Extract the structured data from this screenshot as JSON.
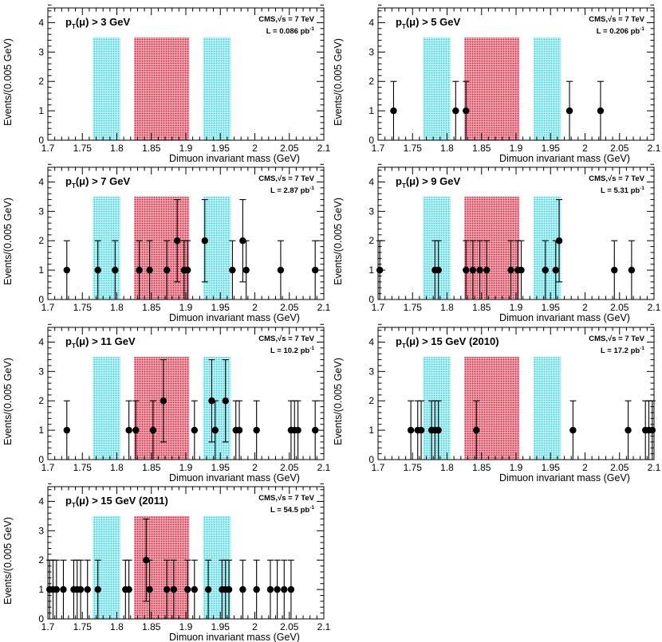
{
  "figure": {
    "x_axis_label": "Dimuon invariant mass (GeV)",
    "y_axis_label": "Events/(0.005 GeV)",
    "experiment": "CMS,",
    "sqrt_s": "√s = 7 TeV"
  },
  "colors": {
    "sideband": "#7fe3ea",
    "signal": "#e0667a",
    "marker": "#000000",
    "frame": "#000000"
  },
  "chart_data": [
    {
      "type": "scatter",
      "title_main": "p",
      "title_sub": "T",
      "title_rest": "(μ) > 3 GeV",
      "lumi": "L = 0.086 pb",
      "lumi_unit_sup": "-1",
      "xlim": [
        1.7,
        2.1
      ],
      "ylim": [
        0,
        4.5
      ],
      "x_ticks": [
        "1.7",
        "1.75",
        "1.8",
        "1.85",
        "1.9",
        "1.95",
        "2",
        "2.05",
        "2.1"
      ],
      "y_ticks": [
        "0",
        "1",
        "2",
        "3",
        "4"
      ],
      "sidebands": [
        [
          1.765,
          1.805
        ],
        [
          1.925,
          1.965
        ]
      ],
      "signal_region": [
        1.825,
        1.905
      ],
      "band_height": 3.5,
      "points": []
    },
    {
      "type": "scatter",
      "title_main": "p",
      "title_sub": "T",
      "title_rest": "(μ) > 5 GeV",
      "lumi": "L = 0.206 pb",
      "lumi_unit_sup": "-1",
      "xlim": [
        1.7,
        2.1
      ],
      "ylim": [
        0,
        4.5
      ],
      "x_ticks": [
        "1.7",
        "1.75",
        "1.8",
        "1.85",
        "1.9",
        "1.95",
        "2",
        "2.05",
        "2.1"
      ],
      "y_ticks": [
        "0",
        "1",
        "2",
        "3",
        "4"
      ],
      "sidebands": [
        [
          1.765,
          1.805
        ],
        [
          1.925,
          1.965
        ]
      ],
      "signal_region": [
        1.825,
        1.905
      ],
      "band_height": 3.5,
      "points": [
        [
          1.7225,
          1
        ],
        [
          1.8125,
          1
        ],
        [
          1.8275,
          1
        ],
        [
          1.9775,
          1
        ],
        [
          2.0225,
          1
        ]
      ]
    },
    {
      "type": "scatter",
      "title_main": "p",
      "title_sub": "T",
      "title_rest": "(μ) > 7 GeV",
      "lumi": "L = 2.87 pb",
      "lumi_unit_sup": "-1",
      "xlim": [
        1.7,
        2.1
      ],
      "ylim": [
        0,
        4.5
      ],
      "x_ticks": [
        "1.7",
        "1.75",
        "1.8",
        "1.85",
        "1.9",
        "1.95",
        "2",
        "2.05",
        "2.1"
      ],
      "y_ticks": [
        "0",
        "1",
        "2",
        "3",
        "4"
      ],
      "sidebands": [
        [
          1.765,
          1.805
        ],
        [
          1.925,
          1.965
        ]
      ],
      "signal_region": [
        1.825,
        1.905
      ],
      "band_height": 3.5,
      "points": [
        [
          1.7275,
          1
        ],
        [
          1.7725,
          1
        ],
        [
          1.7975,
          1
        ],
        [
          1.8325,
          1
        ],
        [
          1.8475,
          1
        ],
        [
          1.8725,
          1
        ],
        [
          1.8875,
          2
        ],
        [
          1.8975,
          1
        ],
        [
          1.9025,
          1
        ],
        [
          1.9275,
          2
        ],
        [
          1.9675,
          1
        ],
        [
          1.9825,
          2
        ],
        [
          1.9875,
          1
        ],
        [
          2.0375,
          1
        ],
        [
          2.0875,
          1
        ]
      ]
    },
    {
      "type": "scatter",
      "title_main": "p",
      "title_sub": "T",
      "title_rest": "(μ) > 9 GeV",
      "lumi": "L = 5.31 pb",
      "lumi_unit_sup": "-1",
      "xlim": [
        1.7,
        2.1
      ],
      "ylim": [
        0,
        4.5
      ],
      "x_ticks": [
        "1.7",
        "1.75",
        "1.8",
        "1.85",
        "1.9",
        "1.95",
        "2",
        "2.05",
        "2.1"
      ],
      "y_ticks": [
        "0",
        "1",
        "2",
        "3",
        "4"
      ],
      "sidebands": [
        [
          1.765,
          1.805
        ],
        [
          1.925,
          1.965
        ]
      ],
      "signal_region": [
        1.825,
        1.905
      ],
      "band_height": 3.5,
      "points": [
        [
          1.7025,
          1
        ],
        [
          1.7825,
          1
        ],
        [
          1.7875,
          1
        ],
        [
          1.8275,
          1
        ],
        [
          1.8375,
          1
        ],
        [
          1.8475,
          1
        ],
        [
          1.8575,
          1
        ],
        [
          1.8925,
          1
        ],
        [
          1.9025,
          1
        ],
        [
          1.9075,
          1
        ],
        [
          1.9425,
          1
        ],
        [
          1.9575,
          1
        ],
        [
          1.9625,
          2
        ],
        [
          2.0425,
          1
        ],
        [
          2.0675,
          1
        ]
      ]
    },
    {
      "type": "scatter",
      "title_main": "p",
      "title_sub": "T",
      "title_rest": "(μ) > 11 GeV",
      "lumi": "L = 10.2 pb",
      "lumi_unit_sup": "-1",
      "xlim": [
        1.7,
        2.1
      ],
      "ylim": [
        0,
        4.5
      ],
      "x_ticks": [
        "1.7",
        "1.75",
        "1.8",
        "1.85",
        "1.9",
        "1.95",
        "2",
        "2.05",
        "2.1"
      ],
      "y_ticks": [
        "0",
        "1",
        "2",
        "3",
        "4"
      ],
      "sidebands": [
        [
          1.765,
          1.805
        ],
        [
          1.925,
          1.965
        ]
      ],
      "signal_region": [
        1.825,
        1.905
      ],
      "band_height": 3.5,
      "points": [
        [
          1.7275,
          1
        ],
        [
          1.8175,
          1
        ],
        [
          1.8275,
          1
        ],
        [
          1.8525,
          1
        ],
        [
          1.8675,
          2
        ],
        [
          1.9125,
          1
        ],
        [
          1.9375,
          2
        ],
        [
          1.9425,
          1
        ],
        [
          1.9575,
          2
        ],
        [
          1.9725,
          1
        ],
        [
          1.9775,
          1
        ],
        [
          2.0025,
          1
        ],
        [
          2.0525,
          1
        ],
        [
          2.0575,
          1
        ],
        [
          2.0625,
          1
        ],
        [
          2.0875,
          1
        ]
      ]
    },
    {
      "type": "scatter",
      "title_main": "p",
      "title_sub": "T",
      "title_rest": "(μ) > 15 GeV (2010)",
      "lumi": "L = 17.2 pb",
      "lumi_unit_sup": "-1",
      "xlim": [
        1.7,
        2.1
      ],
      "ylim": [
        0,
        4.5
      ],
      "x_ticks": [
        "1.7",
        "1.75",
        "1.8",
        "1.85",
        "1.9",
        "1.95",
        "2",
        "2.05",
        "2.1"
      ],
      "y_ticks": [
        "0",
        "1",
        "2",
        "3",
        "4"
      ],
      "sidebands": [
        [
          1.765,
          1.805
        ],
        [
          1.925,
          1.965
        ]
      ],
      "signal_region": [
        1.825,
        1.905
      ],
      "band_height": 3.5,
      "points": [
        [
          1.7475,
          1
        ],
        [
          1.7575,
          1
        ],
        [
          1.7625,
          1
        ],
        [
          1.7775,
          1
        ],
        [
          1.7825,
          1
        ],
        [
          1.7875,
          1
        ],
        [
          1.8425,
          1
        ],
        [
          1.9825,
          1
        ],
        [
          2.0625,
          1
        ],
        [
          2.0875,
          1
        ],
        [
          2.0925,
          1
        ],
        [
          2.0975,
          1
        ]
      ]
    },
    {
      "type": "scatter",
      "title_main": "p",
      "title_sub": "T",
      "title_rest": "(μ) > 15 GeV (2011)",
      "lumi": "L = 54.5 pb",
      "lumi_unit_sup": "-1",
      "xlim": [
        1.7,
        2.1
      ],
      "ylim": [
        0,
        4.5
      ],
      "x_ticks": [
        "1.7",
        "1.75",
        "1.8",
        "1.85",
        "1.9",
        "1.95",
        "2",
        "2.05",
        "2.1"
      ],
      "y_ticks": [
        "0",
        "1",
        "2",
        "3",
        "4"
      ],
      "sidebands": [
        [
          1.765,
          1.805
        ],
        [
          1.925,
          1.965
        ]
      ],
      "signal_region": [
        1.825,
        1.905
      ],
      "band_height": 3.5,
      "points": [
        [
          1.7025,
          1
        ],
        [
          1.7075,
          1
        ],
        [
          1.7125,
          1
        ],
        [
          1.7225,
          1
        ],
        [
          1.7375,
          1
        ],
        [
          1.7425,
          1
        ],
        [
          1.7475,
          1
        ],
        [
          1.7575,
          1
        ],
        [
          1.7725,
          1
        ],
        [
          1.8125,
          1
        ],
        [
          1.8175,
          1
        ],
        [
          1.8425,
          2
        ],
        [
          1.8475,
          1
        ],
        [
          1.8725,
          1
        ],
        [
          1.8825,
          1
        ],
        [
          1.9025,
          1
        ],
        [
          1.9125,
          1
        ],
        [
          1.9325,
          1
        ],
        [
          1.9525,
          1
        ],
        [
          1.9575,
          1
        ],
        [
          1.9625,
          1
        ],
        [
          1.9825,
          1
        ],
        [
          2.0025,
          1
        ],
        [
          2.0225,
          1
        ],
        [
          2.0325,
          1
        ],
        [
          2.0425,
          1
        ],
        [
          2.0525,
          1
        ]
      ]
    }
  ]
}
